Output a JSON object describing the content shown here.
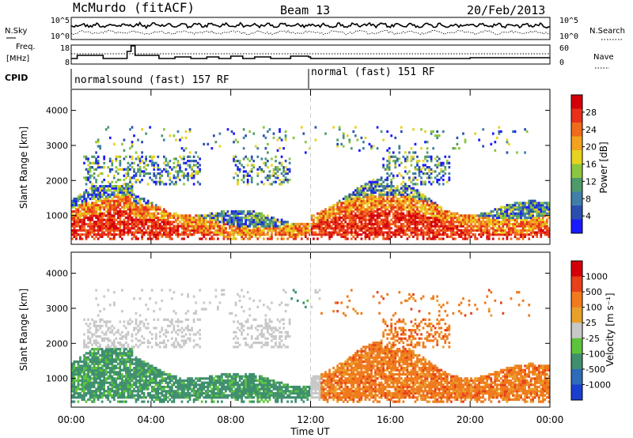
{
  "header": {
    "station": "McMurdo (fitACF)",
    "beam": "Beam 13",
    "date": "20/Feb/2013"
  },
  "left_labels": {
    "nsky": "N.Sky",
    "freq": "Freq.",
    "mhz": "[MHz]",
    "cpid": "CPID"
  },
  "right_labels": {
    "nsearch": "N.Search",
    "nave": "Nave"
  },
  "noise_axis": {
    "left_ticks": [
      "10^5",
      "10^0"
    ],
    "right_ticks": [
      "10^5",
      "10^0"
    ]
  },
  "freq_axis": {
    "left_ticks": [
      "18",
      "8"
    ],
    "right_ticks": [
      "60",
      "0"
    ]
  },
  "cpid_segments": [
    {
      "label": "normalsound (fast) 157 RF",
      "start_hour": 0
    },
    {
      "label": "normal (fast) 151 RF",
      "start_hour": 12
    }
  ],
  "colors": {
    "noise_line": "#000000",
    "boundary_line": "#d0d0d0"
  },
  "chart_data": [
    {
      "type": "heatmap",
      "panel": "power",
      "ylabel": "Slant Range [km]",
      "yticks": [
        1000,
        2000,
        3000,
        4000
      ],
      "ylim": [
        180,
        4600
      ],
      "xlim_hours": [
        0,
        24
      ],
      "colorbar": {
        "label": "Power [dB]",
        "ticks": [
          "4",
          "8",
          "12",
          "16",
          "20",
          "24",
          "28"
        ],
        "colors": [
          "#1a1aff",
          "#2b4fb0",
          "#3f7fa8",
          "#4f9a6a",
          "#8cc63f",
          "#e6d31f",
          "#f2a21f",
          "#f06a1c",
          "#e8301a",
          "#d4000a"
        ]
      }
    },
    {
      "type": "heatmap",
      "panel": "velocity",
      "ylabel": "Slant Range [km]",
      "yticks": [
        1000,
        2000,
        3000,
        4000
      ],
      "ylim": [
        180,
        4600
      ],
      "xlim_hours": [
        0,
        24
      ],
      "colorbar": {
        "label": "Velocity [m s⁻¹]",
        "ticks": [
          "1000",
          "500",
          "100",
          "25",
          "-25",
          "-100",
          "-500",
          "-1000"
        ],
        "colors": [
          "#1a3fcf",
          "#2e6bb8",
          "#3f8f6f",
          "#5cc43a",
          "#c8c8c8",
          "#e8a02a",
          "#f07a1c",
          "#e8401a",
          "#d4000a"
        ]
      }
    }
  ],
  "time_axis": {
    "label": "Time UT",
    "ticks": [
      "00:00",
      "04:00",
      "08:00",
      "12:00",
      "16:00",
      "20:00",
      "00:00"
    ]
  }
}
